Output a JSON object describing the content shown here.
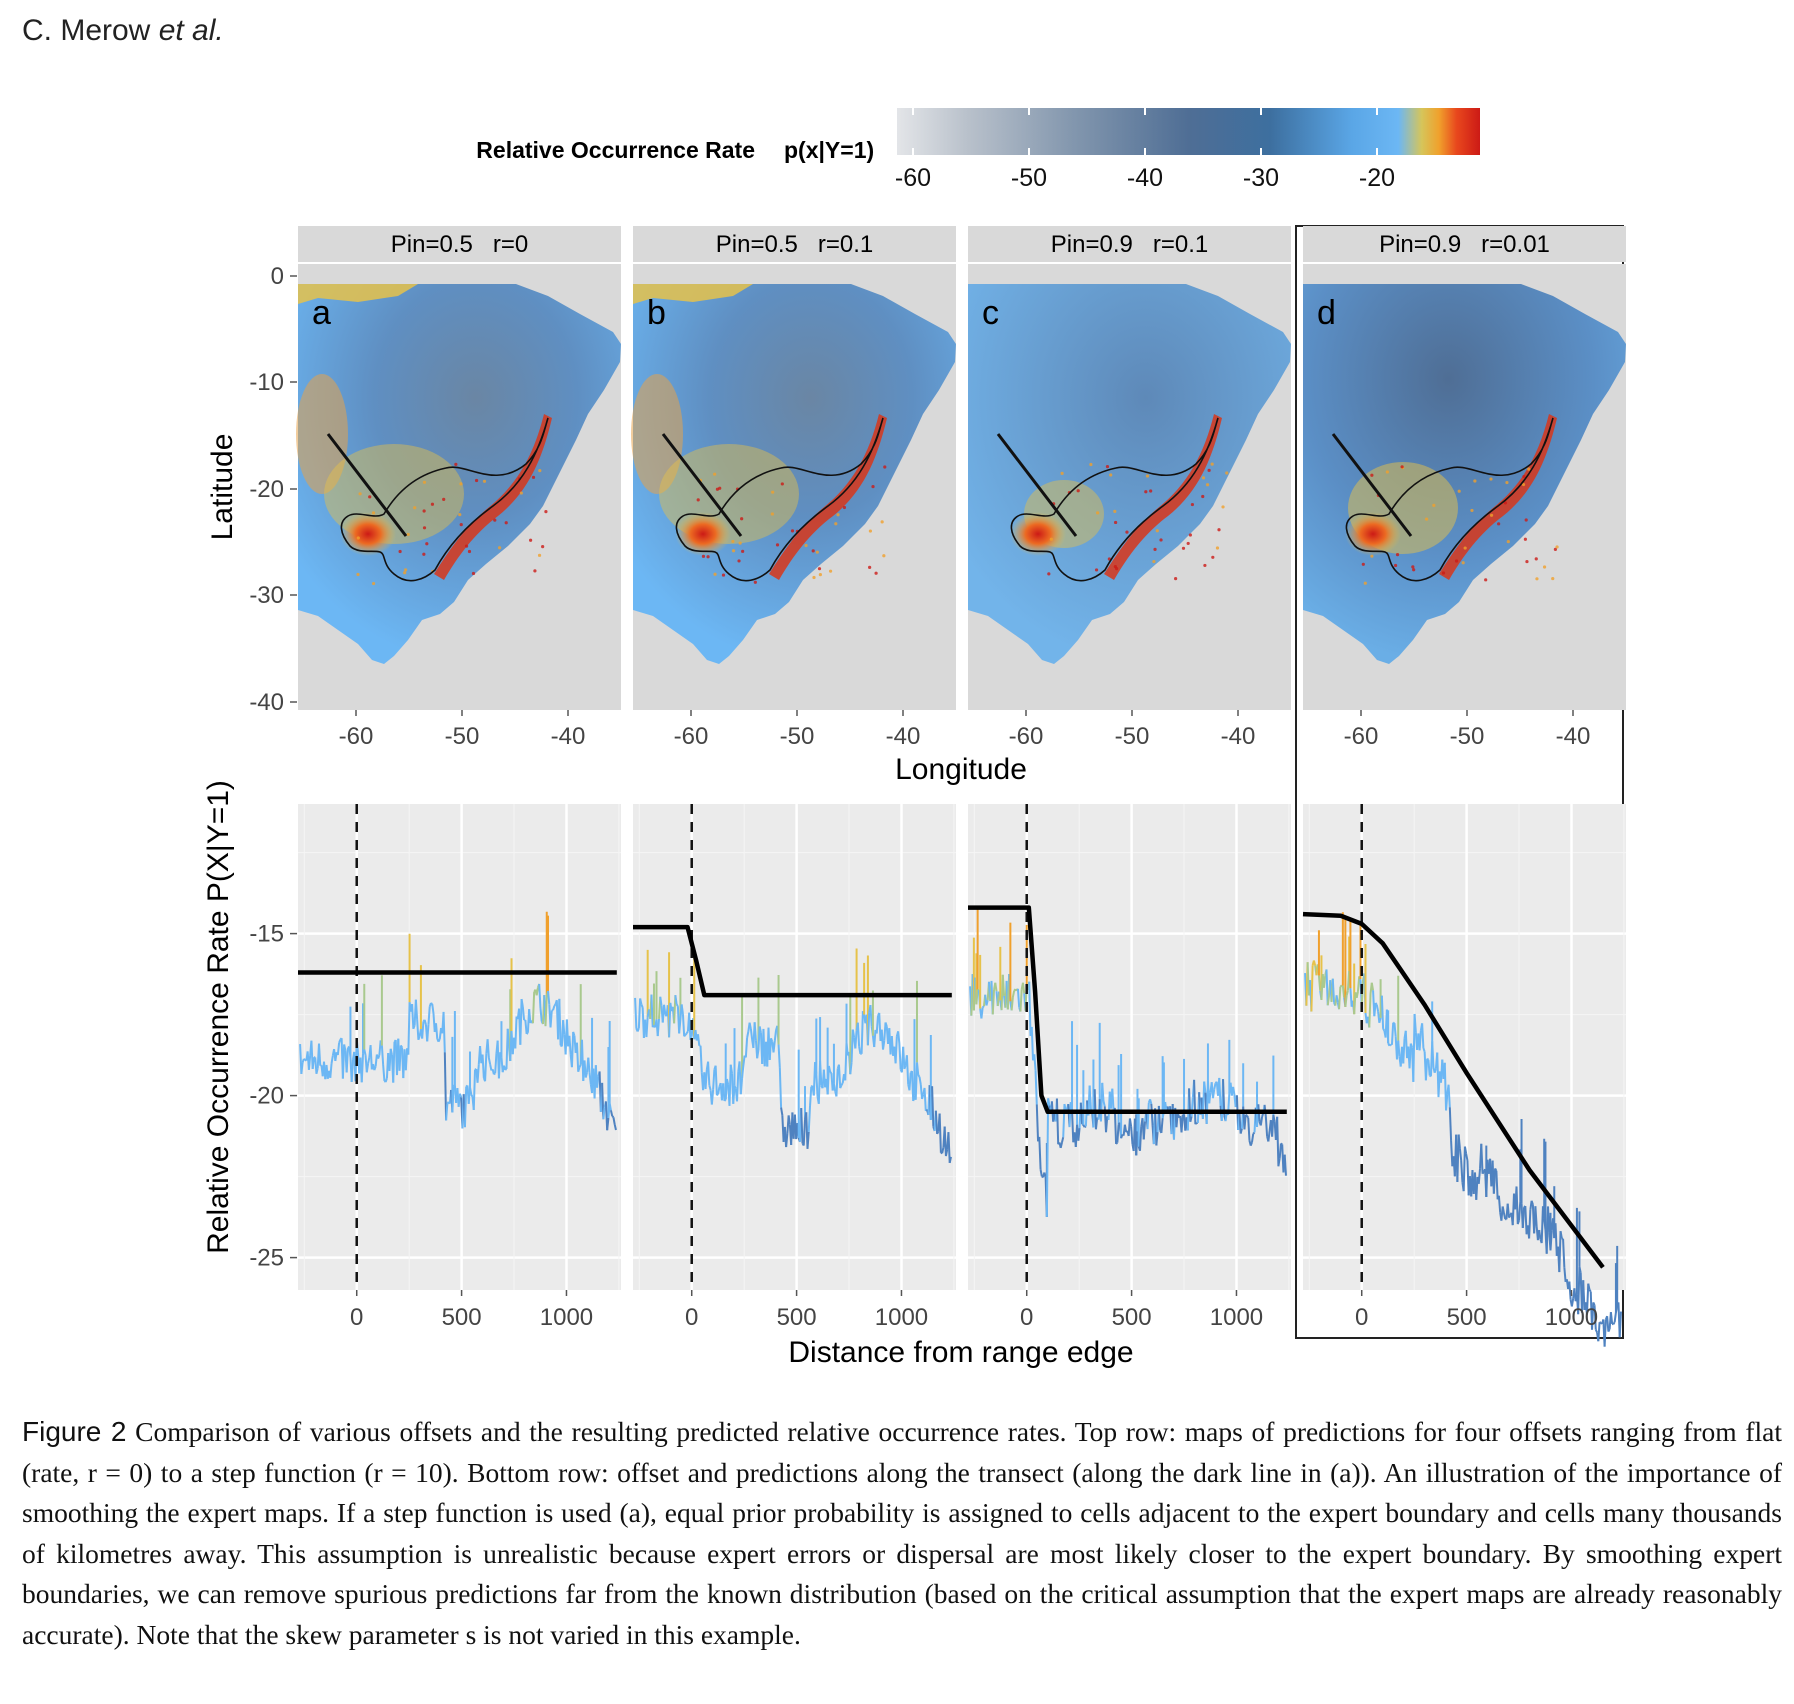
{
  "running_head": {
    "author": "C. Merow",
    "etal": "et al."
  },
  "colorbar": {
    "title": "Relative Occurrence Rate",
    "subtitle": "p(x|Y=1)",
    "ticks": [
      "-60",
      "-50",
      "-40",
      "-30",
      "-20"
    ],
    "stops": [
      "#e3e5e8",
      "#b9c1cb",
      "#8397ae",
      "#4f6e95",
      "#3d6f9f",
      "#5aa6e6",
      "#6cb7f4",
      "#d6c55a",
      "#f0a02c",
      "#e8471d",
      "#cc1a16"
    ]
  },
  "top_row": {
    "x_label": "Longitude",
    "y_label": "Latitude",
    "y_ticks": [
      "0",
      "-10",
      "-20",
      "-30",
      "-40"
    ],
    "x_ticks": [
      "-60",
      "-50",
      "-40"
    ]
  },
  "panels": [
    {
      "strip": "Pin=0.5   r=0",
      "letter": "a"
    },
    {
      "strip": "Pin=0.5   r=0.1",
      "letter": "b"
    },
    {
      "strip": "Pin=0.9   r=0.1",
      "letter": "c"
    },
    {
      "strip": "Pin=0.9   r=0.01",
      "letter": "d"
    }
  ],
  "bottom_row": {
    "x_label": "Distance from range edge",
    "y_label": "Relative Occurrence Rate P(X|Y=1)",
    "y_ticks": [
      "-15",
      "-20",
      "-25"
    ],
    "x_ticks": [
      "0",
      "500",
      "1000"
    ]
  },
  "chart_data": {
    "type": "line",
    "x_range": [
      -280,
      1260
    ],
    "y_range": [
      -26,
      -11
    ],
    "panels": [
      {
        "name": "a",
        "offset": {
          "x": [
            -280,
            1240
          ],
          "y": [
            -16.2,
            -16.2
          ]
        }
      },
      {
        "name": "b",
        "offset": {
          "x": [
            -280,
            -20,
            20,
            60,
            1240
          ],
          "y": [
            -14.8,
            -14.8,
            -15.8,
            -16.9,
            -16.9
          ]
        }
      },
      {
        "name": "c",
        "offset": {
          "x": [
            -280,
            10,
            40,
            70,
            100,
            1240
          ],
          "y": [
            -14.2,
            -14.2,
            -16.8,
            -20.0,
            -20.5,
            -20.5
          ]
        }
      },
      {
        "name": "d",
        "offset": {
          "x": [
            -280,
            -100,
            0,
            100,
            300,
            500,
            800,
            1150
          ],
          "y": [
            -14.4,
            -14.45,
            -14.7,
            -15.3,
            -17.2,
            -19.3,
            -22.3,
            -25.3
          ]
        }
      }
    ]
  },
  "caption": {
    "label": "Figure 2",
    "text": "Comparison of various offsets and the resulting predicted relative occurrence rates. Top row: maps of predictions for four offsets ranging from flat (rate, r = 0) to a step function (r = 10). Bottom row: offset and predictions along the transect (along the dark line in (a)). An illustration of the importance of smoothing the expert maps. If a step function is used (a), equal prior probability is assigned to cells adjacent to the expert boundary and cells many thousands of kilometres away. This assumption is unrealistic because expert errors or dispersal are most likely closer to the expert boundary. By smoothing expert boundaries, we can remove spurious predictions far from the known distribution (based on the critical assumption that the expert maps are already reasonably accurate). Note that the skew parameter s is not varied in this example."
  }
}
